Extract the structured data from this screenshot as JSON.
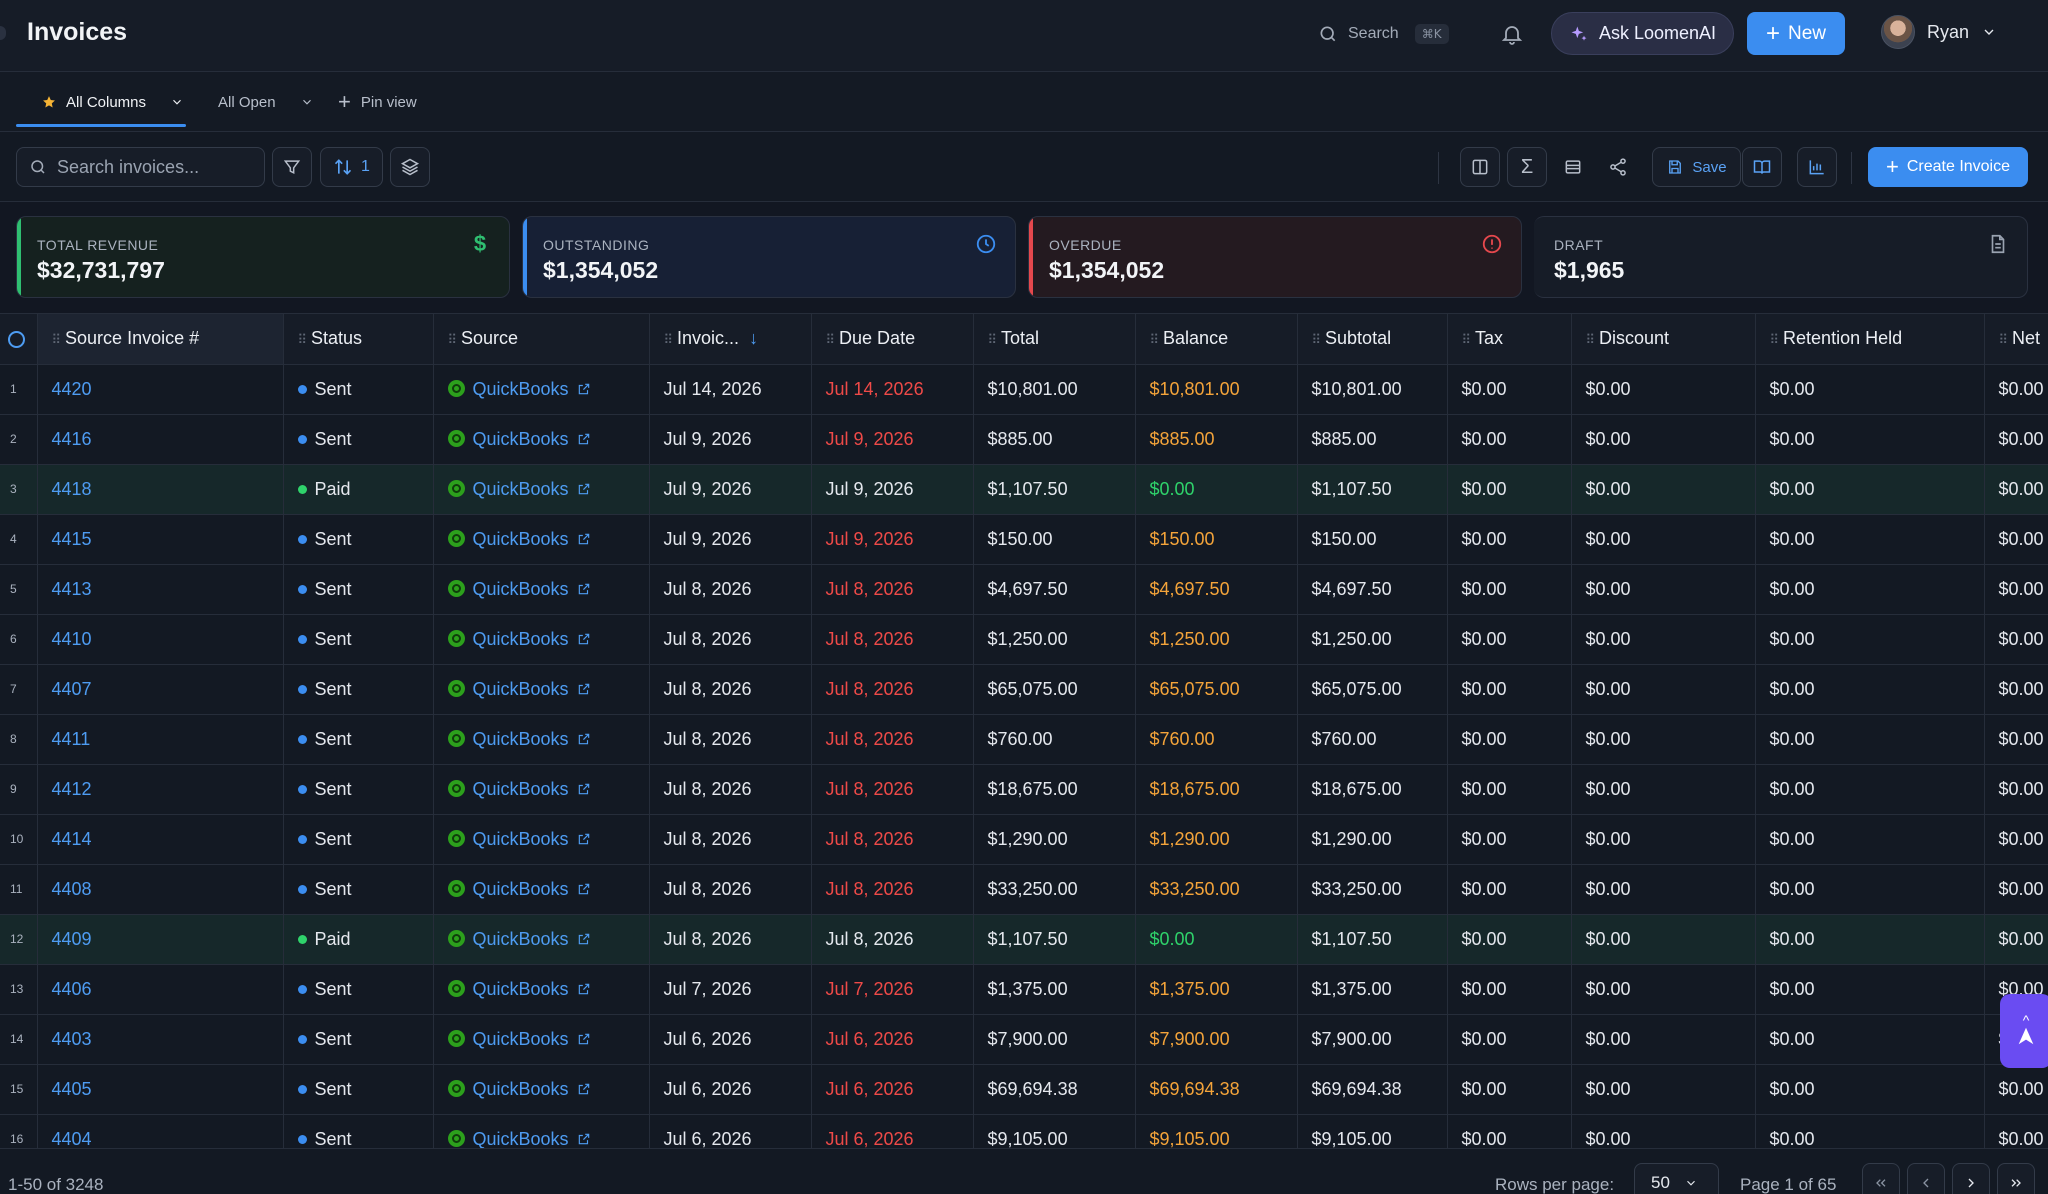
{
  "header": {
    "title": "Invoices",
    "search_label": "Search",
    "search_shortcut": "⌘K",
    "ask_label": "Ask LoomenAI",
    "new_label": "New",
    "user_name": "Ryan"
  },
  "tabs": [
    {
      "label": "All Columns",
      "active": true
    },
    {
      "label": "All Open",
      "active": false
    },
    {
      "label": "Pin view",
      "active": false
    }
  ],
  "toolbar": {
    "search_placeholder": "Search invoices...",
    "sort_count": "1",
    "save_label": "Save",
    "create_label": "Create Invoice"
  },
  "cards": [
    {
      "label": "TOTAL REVENUE",
      "value": "$32,731,797",
      "accent": "#2fbf71",
      "icon": "dollar-icon"
    },
    {
      "label": "OUTSTANDING",
      "value": "$1,354,052",
      "accent": "#3b8df0",
      "icon": "clock-icon"
    },
    {
      "label": "OVERDUE",
      "value": "$1,354,052",
      "accent": "#e5484d",
      "icon": "alert-circle-icon"
    },
    {
      "label": "DRAFT",
      "value": "$1,965",
      "accent": "#6b7380",
      "icon": "document-icon"
    }
  ],
  "table": {
    "columns": [
      "Source Invoice #",
      "Status",
      "Source",
      "Invoic...",
      "Due Date",
      "Total",
      "Balance",
      "Subtotal",
      "Tax",
      "Discount",
      "Retention Held",
      "Net"
    ],
    "rows": [
      {
        "n": "1",
        "inv": "4420",
        "status": "Sent",
        "source": "QuickBooks",
        "date": "Jul 14, 2026",
        "due": "Jul 14, 2026",
        "total": "$10,801.00",
        "balance": "$10,801.00",
        "subtotal": "$10,801.00",
        "tax": "$0.00",
        "discount": "$0.00",
        "retention": "$0.00",
        "net": "$0.00"
      },
      {
        "n": "2",
        "inv": "4416",
        "status": "Sent",
        "source": "QuickBooks",
        "date": "Jul 9, 2026",
        "due": "Jul 9, 2026",
        "total": "$885.00",
        "balance": "$885.00",
        "subtotal": "$885.00",
        "tax": "$0.00",
        "discount": "$0.00",
        "retention": "$0.00",
        "net": "$0.00"
      },
      {
        "n": "3",
        "inv": "4418",
        "status": "Paid",
        "source": "QuickBooks",
        "date": "Jul 9, 2026",
        "due": "Jul 9, 2026",
        "total": "$1,107.50",
        "balance": "$0.00",
        "subtotal": "$1,107.50",
        "tax": "$0.00",
        "discount": "$0.00",
        "retention": "$0.00",
        "net": "$0.00"
      },
      {
        "n": "4",
        "inv": "4415",
        "status": "Sent",
        "source": "QuickBooks",
        "date": "Jul 9, 2026",
        "due": "Jul 9, 2026",
        "total": "$150.00",
        "balance": "$150.00",
        "subtotal": "$150.00",
        "tax": "$0.00",
        "discount": "$0.00",
        "retention": "$0.00",
        "net": "$0.00"
      },
      {
        "n": "5",
        "inv": "4413",
        "status": "Sent",
        "source": "QuickBooks",
        "date": "Jul 8, 2026",
        "due": "Jul 8, 2026",
        "total": "$4,697.50",
        "balance": "$4,697.50",
        "subtotal": "$4,697.50",
        "tax": "$0.00",
        "discount": "$0.00",
        "retention": "$0.00",
        "net": "$0.00"
      },
      {
        "n": "6",
        "inv": "4410",
        "status": "Sent",
        "source": "QuickBooks",
        "date": "Jul 8, 2026",
        "due": "Jul 8, 2026",
        "total": "$1,250.00",
        "balance": "$1,250.00",
        "subtotal": "$1,250.00",
        "tax": "$0.00",
        "discount": "$0.00",
        "retention": "$0.00",
        "net": "$0.00"
      },
      {
        "n": "7",
        "inv": "4407",
        "status": "Sent",
        "source": "QuickBooks",
        "date": "Jul 8, 2026",
        "due": "Jul 8, 2026",
        "total": "$65,075.00",
        "balance": "$65,075.00",
        "subtotal": "$65,075.00",
        "tax": "$0.00",
        "discount": "$0.00",
        "retention": "$0.00",
        "net": "$0.00"
      },
      {
        "n": "8",
        "inv": "4411",
        "status": "Sent",
        "source": "QuickBooks",
        "date": "Jul 8, 2026",
        "due": "Jul 8, 2026",
        "total": "$760.00",
        "balance": "$760.00",
        "subtotal": "$760.00",
        "tax": "$0.00",
        "discount": "$0.00",
        "retention": "$0.00",
        "net": "$0.00"
      },
      {
        "n": "9",
        "inv": "4412",
        "status": "Sent",
        "source": "QuickBooks",
        "date": "Jul 8, 2026",
        "due": "Jul 8, 2026",
        "total": "$18,675.00",
        "balance": "$18,675.00",
        "subtotal": "$18,675.00",
        "tax": "$0.00",
        "discount": "$0.00",
        "retention": "$0.00",
        "net": "$0.00"
      },
      {
        "n": "10",
        "inv": "4414",
        "status": "Sent",
        "source": "QuickBooks",
        "date": "Jul 8, 2026",
        "due": "Jul 8, 2026",
        "total": "$1,290.00",
        "balance": "$1,290.00",
        "subtotal": "$1,290.00",
        "tax": "$0.00",
        "discount": "$0.00",
        "retention": "$0.00",
        "net": "$0.00"
      },
      {
        "n": "11",
        "inv": "4408",
        "status": "Sent",
        "source": "QuickBooks",
        "date": "Jul 8, 2026",
        "due": "Jul 8, 2026",
        "total": "$33,250.00",
        "balance": "$33,250.00",
        "subtotal": "$33,250.00",
        "tax": "$0.00",
        "discount": "$0.00",
        "retention": "$0.00",
        "net": "$0.00"
      },
      {
        "n": "12",
        "inv": "4409",
        "status": "Paid",
        "source": "QuickBooks",
        "date": "Jul 8, 2026",
        "due": "Jul 8, 2026",
        "total": "$1,107.50",
        "balance": "$0.00",
        "subtotal": "$1,107.50",
        "tax": "$0.00",
        "discount": "$0.00",
        "retention": "$0.00",
        "net": "$0.00"
      },
      {
        "n": "13",
        "inv": "4406",
        "status": "Sent",
        "source": "QuickBooks",
        "date": "Jul 7, 2026",
        "due": "Jul 7, 2026",
        "total": "$1,375.00",
        "balance": "$1,375.00",
        "subtotal": "$1,375.00",
        "tax": "$0.00",
        "discount": "$0.00",
        "retention": "$0.00",
        "net": "$0.00"
      },
      {
        "n": "14",
        "inv": "4403",
        "status": "Sent",
        "source": "QuickBooks",
        "date": "Jul 6, 2026",
        "due": "Jul 6, 2026",
        "total": "$7,900.00",
        "balance": "$7,900.00",
        "subtotal": "$7,900.00",
        "tax": "$0.00",
        "discount": "$0.00",
        "retention": "$0.00",
        "net": "$0.00"
      },
      {
        "n": "15",
        "inv": "4405",
        "status": "Sent",
        "source": "QuickBooks",
        "date": "Jul 6, 2026",
        "due": "Jul 6, 2026",
        "total": "$69,694.38",
        "balance": "$69,694.38",
        "subtotal": "$69,694.38",
        "tax": "$0.00",
        "discount": "$0.00",
        "retention": "$0.00",
        "net": "$0.00"
      },
      {
        "n": "16",
        "inv": "4404",
        "status": "Sent",
        "source": "QuickBooks",
        "date": "Jul 6, 2026",
        "due": "Jul 6, 2026",
        "total": "$9,105.00",
        "balance": "$9,105.00",
        "subtotal": "$9,105.00",
        "tax": "$0.00",
        "discount": "$0.00",
        "retention": "$0.00",
        "net": "$0.00"
      }
    ]
  },
  "footer": {
    "count": "1-50 of 3248",
    "rows_per_page_label": "Rows per page:",
    "rows_per_page_value": "50",
    "page_info": "Page 1 of 65"
  },
  "colors": {
    "accent": "#3b8df0",
    "sent": "#3b8df0",
    "paid": "#2fd36b",
    "overdue_text": "#ef4a48",
    "balance_text": "#f4a43a"
  }
}
